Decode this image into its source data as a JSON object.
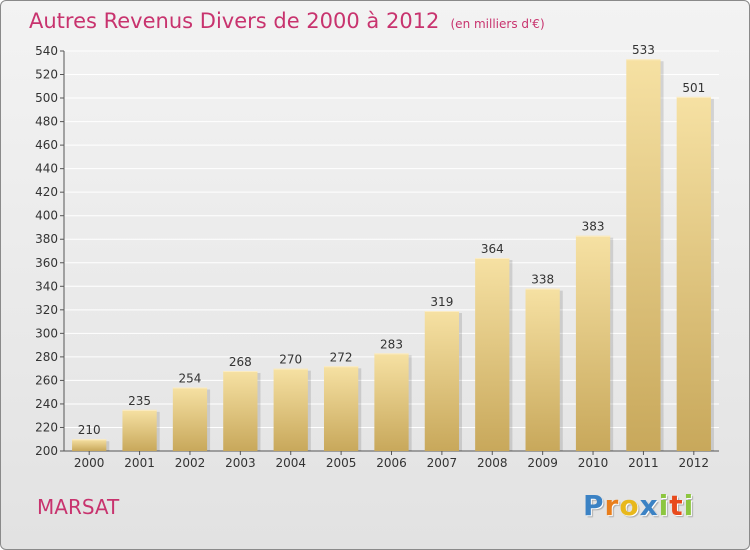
{
  "header": {
    "title": "Autres Revenus Divers de 2000 à 2012",
    "unit": "(en milliers d'€)"
  },
  "footer": {
    "town": "MARSAT",
    "logo_letters": [
      "P",
      "r",
      "o",
      "x",
      "i",
      "t",
      "i"
    ]
  },
  "colors": {
    "title": "#c8336e",
    "bar_light": "#f4dc9a",
    "bar_dark": "#c9a95c",
    "grid": "#ffffff",
    "logo": [
      "#3b82c4",
      "#e87e1c",
      "#e8b81c",
      "#3b82c4",
      "#8cc63f",
      "#e84a1c",
      "#8cc63f"
    ]
  },
  "chart_data": {
    "type": "bar",
    "title": "Autres Revenus Divers de 2000 à 2012",
    "xlabel": "",
    "ylabel": "",
    "categories": [
      "2000",
      "2001",
      "2002",
      "2003",
      "2004",
      "2005",
      "2006",
      "2007",
      "2008",
      "2009",
      "2010",
      "2011",
      "2012"
    ],
    "values": [
      210,
      235,
      254,
      268,
      270,
      272,
      283,
      319,
      364,
      338,
      383,
      533,
      501
    ],
    "ylim": [
      200,
      540
    ],
    "yticks": [
      200,
      220,
      240,
      260,
      280,
      300,
      320,
      340,
      360,
      380,
      400,
      420,
      440,
      460,
      480,
      500,
      520,
      540
    ],
    "grid": true,
    "data_labels": true
  }
}
